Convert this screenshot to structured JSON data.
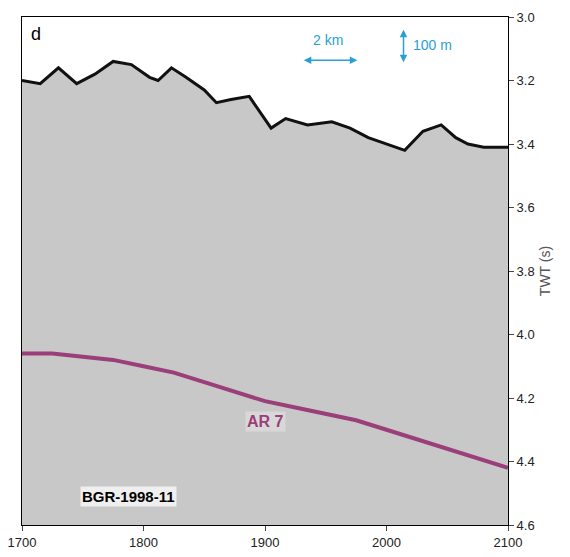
{
  "chart_data": {
    "type": "line",
    "panel_label": "d",
    "scale_labels": [
      "2 km",
      "100 m"
    ],
    "profile": "BGR-1998-11",
    "y_label": "TWT (s)",
    "xlim": [
      1700,
      2100
    ],
    "xticks": [
      1700,
      1800,
      1900,
      2000,
      2100
    ],
    "ylim": [
      3.0,
      4.6
    ],
    "yticks": [
      {
        "value": 3.0,
        "label": "3.0"
      },
      {
        "value": 3.2,
        "label": "3.2"
      },
      {
        "value": 3.4,
        "label": "3.4"
      },
      {
        "value": 3.6,
        "label": "3.6"
      },
      {
        "value": 3.8,
        "label": "3.8"
      },
      {
        "value": 4.0,
        "label": "4.0"
      },
      {
        "value": 4.2,
        "label": "4.2"
      },
      {
        "value": 4.4,
        "label": "4.4"
      },
      {
        "value": 4.6,
        "label": "4.6"
      }
    ],
    "series": [
      {
        "color": "#111111",
        "x": [
          1700,
          1715,
          1730,
          1745,
          1760,
          1775,
          1790,
          1805,
          1812,
          1823,
          1835,
          1850,
          1860,
          1872,
          1887,
          1905,
          1917,
          1935,
          1955,
          1970,
          1985,
          2000,
          2015,
          2030,
          2045,
          2057,
          2067,
          2080,
          2090,
          2100
        ],
        "values": [
          3.2,
          3.21,
          3.16,
          3.21,
          3.18,
          3.14,
          3.15,
          3.19,
          3.2,
          3.16,
          3.19,
          3.23,
          3.27,
          3.26,
          3.25,
          3.35,
          3.32,
          3.34,
          3.33,
          3.35,
          3.38,
          3.4,
          3.42,
          3.36,
          3.34,
          3.38,
          3.4,
          3.41,
          3.41,
          3.41
        ]
      },
      {
        "name": "AR 7",
        "color": "#9b3f7a",
        "x": [
          1700,
          1725,
          1750,
          1775,
          1800,
          1825,
          1850,
          1875,
          1900,
          1925,
          1950,
          1975,
          2000,
          2025,
          2050,
          2075,
          2100
        ],
        "values": [
          4.06,
          4.06,
          4.07,
          4.08,
          4.1,
          4.12,
          4.15,
          4.18,
          4.21,
          4.23,
          4.25,
          4.27,
          4.3,
          4.33,
          4.36,
          4.39,
          4.42
        ]
      }
    ]
  }
}
